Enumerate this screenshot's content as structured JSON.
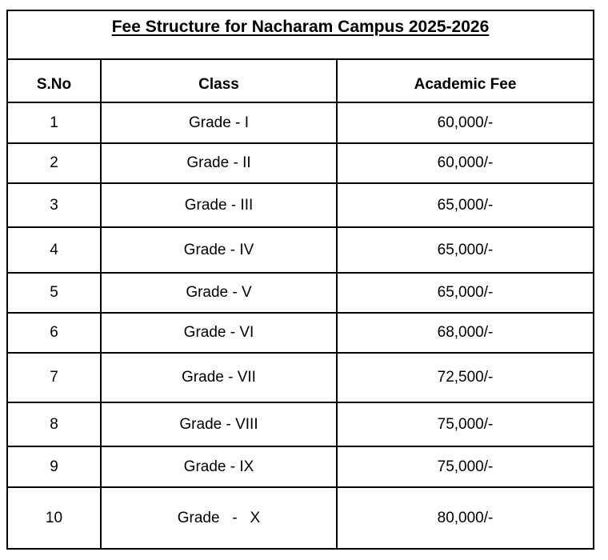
{
  "title": "Fee Structure for Nacharam Campus 2025-2026",
  "table": {
    "headers": {
      "sno": "S.No",
      "class": "Class",
      "fee": "Academic Fee"
    },
    "rows": [
      {
        "sno": "1",
        "class": "Grade - I",
        "fee": "60,000/-"
      },
      {
        "sno": "2",
        "class": "Grade - II",
        "fee": "60,000/-"
      },
      {
        "sno": "3",
        "class": "Grade - III",
        "fee": "65,000/-"
      },
      {
        "sno": "4",
        "class": "Grade - IV",
        "fee": "65,000/-"
      },
      {
        "sno": "5",
        "class": "Grade - V",
        "fee": "65,000/-"
      },
      {
        "sno": "6",
        "class": "Grade - VI",
        "fee": "68,000/-"
      },
      {
        "sno": "7",
        "class": "Grade - VII",
        "fee": "72,500/-"
      },
      {
        "sno": "8",
        "class": "Grade - VIII",
        "fee": "75,000/-"
      },
      {
        "sno": "9",
        "class": "Grade - IX",
        "fee": "75,000/-"
      },
      {
        "sno": "10",
        "class": "Grade   -   X",
        "fee": "80,000/-"
      }
    ]
  },
  "colors": {
    "border": "#000000",
    "text": "#000000",
    "background": "#ffffff"
  }
}
